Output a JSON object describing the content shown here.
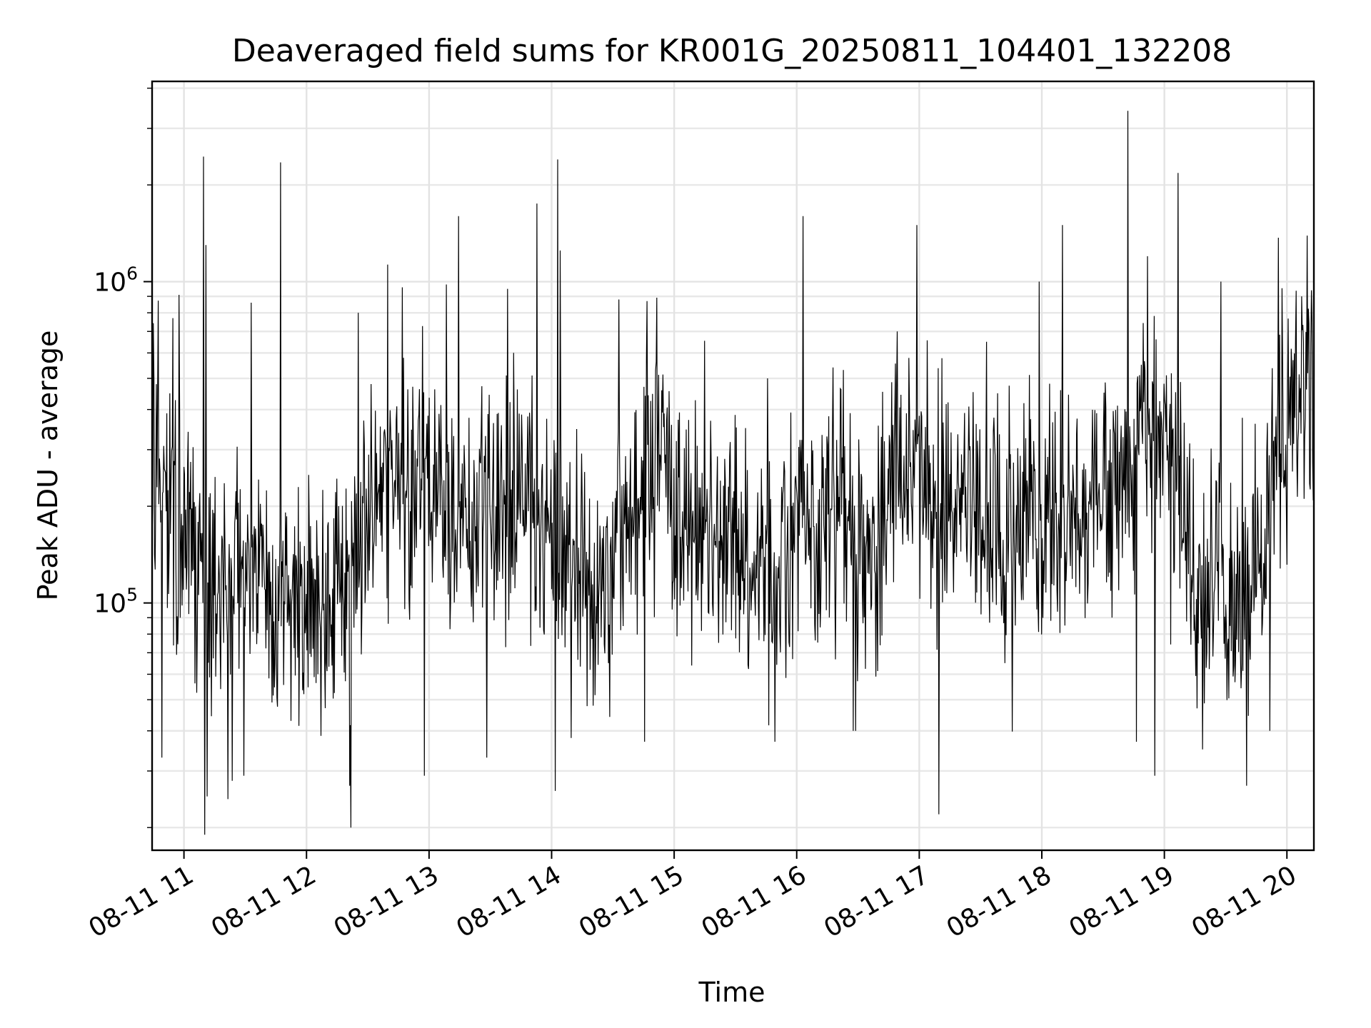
{
  "chart_data": {
    "type": "line",
    "title": "Deaveraged field sums for KR001G_20250811_104401_132208",
    "xlabel": "Time",
    "ylabel": "Peak ADU - average",
    "y_scale": "log",
    "grid": true,
    "x_tick_labels": [
      "08-11 11",
      "08-11 12",
      "08-11 13",
      "08-11 14",
      "08-11 15",
      "08-11 16",
      "08-11 17",
      "08-11 18",
      "08-11 19",
      "08-11 20"
    ],
    "x_tick_hours": [
      11,
      12,
      13,
      14,
      15,
      16,
      17,
      18,
      19,
      20
    ],
    "x_range_hours": [
      10.74,
      20.22
    ],
    "y_tick_labels": [
      {
        "base": "10",
        "exp": "5",
        "value": 100000
      },
      {
        "base": "10",
        "exp": "6",
        "value": 1000000
      }
    ],
    "ylim": [
      17000,
      4200000
    ],
    "series": [
      {
        "color": "#000000",
        "samples": 1900,
        "trend": [
          [
            10.74,
            300000
          ],
          [
            10.9,
            230000
          ],
          [
            11.05,
            170000
          ],
          [
            11.2,
            110000
          ],
          [
            11.4,
            105000
          ],
          [
            11.6,
            125000
          ],
          [
            11.8,
            105000
          ],
          [
            12.0,
            95000
          ],
          [
            12.2,
            110000
          ],
          [
            12.4,
            145000
          ],
          [
            12.6,
            220000
          ],
          [
            12.8,
            240000
          ],
          [
            13.0,
            230000
          ],
          [
            13.2,
            200000
          ],
          [
            13.4,
            185000
          ],
          [
            13.6,
            190000
          ],
          [
            13.8,
            190000
          ],
          [
            14.0,
            160000
          ],
          [
            14.2,
            140000
          ],
          [
            14.35,
            95000
          ],
          [
            14.5,
            165000
          ],
          [
            14.7,
            185000
          ],
          [
            14.85,
            300000
          ],
          [
            15.0,
            180000
          ],
          [
            15.2,
            185000
          ],
          [
            15.4,
            150000
          ],
          [
            15.6,
            135000
          ],
          [
            15.8,
            120000
          ],
          [
            16.0,
            165000
          ],
          [
            16.2,
            185000
          ],
          [
            16.4,
            170000
          ],
          [
            16.6,
            165000
          ],
          [
            16.8,
            240000
          ],
          [
            17.0,
            250000
          ],
          [
            17.2,
            200000
          ],
          [
            17.4,
            190000
          ],
          [
            17.6,
            190000
          ],
          [
            17.8,
            170000
          ],
          [
            18.0,
            175000
          ],
          [
            18.2,
            180000
          ],
          [
            18.4,
            195000
          ],
          [
            18.6,
            210000
          ],
          [
            18.8,
            320000
          ],
          [
            19.0,
            360000
          ],
          [
            19.15,
            180000
          ],
          [
            19.3,
            85000
          ],
          [
            19.45,
            150000
          ],
          [
            19.6,
            85000
          ],
          [
            19.8,
            140000
          ],
          [
            19.95,
            330000
          ],
          [
            20.1,
            420000
          ],
          [
            20.22,
            560000
          ]
        ],
        "spikes": [
          [
            10.91,
            770000
          ],
          [
            10.96,
            910000
          ],
          [
            11.16,
            2450000
          ],
          [
            11.18,
            1300000
          ],
          [
            11.55,
            860000
          ],
          [
            11.79,
            2350000
          ],
          [
            12.42,
            800000
          ],
          [
            12.66,
            1130000
          ],
          [
            12.78,
            960000
          ],
          [
            13.14,
            980000
          ],
          [
            13.24,
            1600000
          ],
          [
            13.64,
            950000
          ],
          [
            13.88,
            1750000
          ],
          [
            14.05,
            2400000
          ],
          [
            14.07,
            1250000
          ],
          [
            14.55,
            880000
          ],
          [
            14.78,
            870000
          ],
          [
            15.76,
            500000
          ],
          [
            16.05,
            1600000
          ],
          [
            16.82,
            700000
          ],
          [
            16.98,
            1500000
          ],
          [
            17.55,
            650000
          ],
          [
            17.98,
            1000000
          ],
          [
            18.17,
            1500000
          ],
          [
            18.7,
            3400000
          ],
          [
            18.86,
            1200000
          ],
          [
            19.11,
            2180000
          ],
          [
            19.46,
            1000000
          ],
          [
            19.93,
            1370000
          ],
          [
            20.12,
            900000
          ]
        ],
        "dips": [
          [
            10.82,
            33000
          ],
          [
            11.17,
            19000
          ],
          [
            11.19,
            25000
          ],
          [
            11.49,
            29000
          ],
          [
            12.36,
            20000
          ],
          [
            12.35,
            27000
          ],
          [
            12.96,
            29000
          ],
          [
            13.47,
            33000
          ],
          [
            14.03,
            26000
          ],
          [
            14.16,
            38000
          ],
          [
            14.76,
            37000
          ],
          [
            15.82,
            37000
          ],
          [
            16.46,
            40000
          ],
          [
            16.48,
            40000
          ],
          [
            17.16,
            22000
          ],
          [
            18.77,
            37000
          ],
          [
            18.92,
            29000
          ],
          [
            19.31,
            35000
          ],
          [
            19.67,
            27000
          ],
          [
            19.86,
            40000
          ]
        ]
      }
    ]
  }
}
